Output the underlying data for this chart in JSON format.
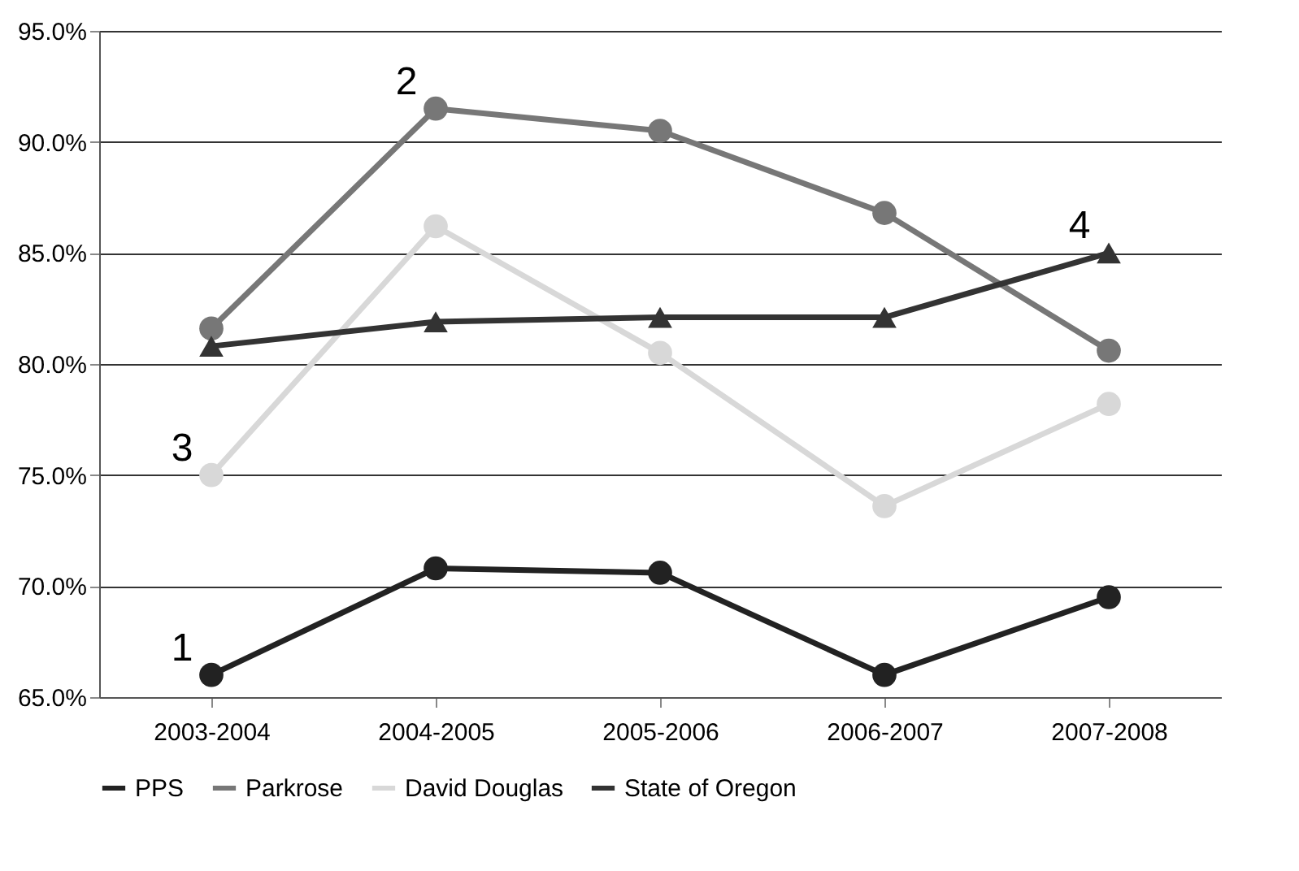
{
  "chart_data": {
    "type": "line",
    "categories": [
      "2003-2004",
      "2004-2005",
      "2005-2006",
      "2006-2007",
      "2007-2008"
    ],
    "series": [
      {
        "name": "PPS",
        "color": "#222222",
        "marker": "circle",
        "values": [
          66.0,
          70.8,
          70.6,
          66.0,
          69.5
        ]
      },
      {
        "name": "Parkrose",
        "color": "#777777",
        "marker": "circle",
        "values": [
          81.6,
          91.5,
          90.5,
          86.8,
          80.6
        ]
      },
      {
        "name": "David Douglas",
        "color": "#d8d8d8",
        "marker": "circle",
        "values": [
          75.0,
          86.2,
          80.5,
          73.6,
          78.2
        ]
      },
      {
        "name": "State of Oregon",
        "color": "#333333",
        "marker": "triangle",
        "values": [
          80.8,
          81.9,
          82.1,
          82.1,
          85.0
        ]
      }
    ],
    "ylim": [
      65,
      95
    ],
    "yticks": [
      {
        "value": 65,
        "label": "65.0%"
      },
      {
        "value": 70,
        "label": "70.0%"
      },
      {
        "value": 75,
        "label": "75.0%"
      },
      {
        "value": 80,
        "label": "80.0%"
      },
      {
        "value": 85,
        "label": "85.0%"
      },
      {
        "value": 90,
        "label": "90.0%"
      },
      {
        "value": 95,
        "label": "95.0%"
      }
    ],
    "grid": "y",
    "legend": "bottom",
    "line_style": "solid",
    "annotations": [
      {
        "text": "1",
        "x": "2003-2004",
        "y": 66.0
      },
      {
        "text": "2",
        "x": "2004-2005",
        "y": 91.5
      },
      {
        "text": "3",
        "x": "2003-2004",
        "y": 75.0
      },
      {
        "text": "4",
        "x": "2007-2008",
        "y": 85.0
      }
    ]
  }
}
